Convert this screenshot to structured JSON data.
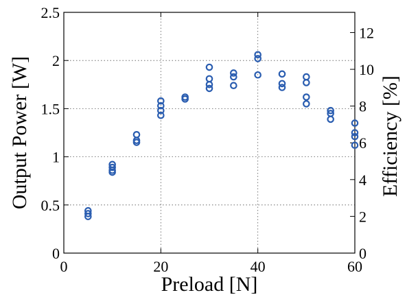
{
  "chart_data": {
    "type": "scatter",
    "title": "",
    "xlabel": "Preload [N]",
    "ylabel": "Output Power [W]",
    "y2label": "Efficiency [%]",
    "xlim": [
      0,
      60
    ],
    "ylim": [
      0,
      2.5
    ],
    "y2lim": [
      0,
      13.1
    ],
    "grid": true,
    "x_ticks": [
      "0",
      "20",
      "40",
      "60"
    ],
    "y_ticks": [
      "0",
      "0.5",
      "1",
      "1.5",
      "2",
      "2.5"
    ],
    "y2_ticks": [
      "0",
      "2",
      "4",
      "6",
      "8",
      "10",
      "12"
    ],
    "marker_color": "#2a5db0",
    "series": [
      {
        "points": [
          {
            "x": 5,
            "y": 0.44
          },
          {
            "x": 5,
            "y": 0.41
          },
          {
            "x": 5,
            "y": 0.38
          },
          {
            "x": 10,
            "y": 0.92
          },
          {
            "x": 10,
            "y": 0.89
          },
          {
            "x": 10,
            "y": 0.86
          },
          {
            "x": 10,
            "y": 0.84
          },
          {
            "x": 15,
            "y": 1.23
          },
          {
            "x": 15,
            "y": 1.17
          },
          {
            "x": 15,
            "y": 1.15
          },
          {
            "x": 20,
            "y": 1.58
          },
          {
            "x": 20,
            "y": 1.53
          },
          {
            "x": 20,
            "y": 1.48
          },
          {
            "x": 20,
            "y": 1.43
          },
          {
            "x": 25,
            "y": 1.62
          },
          {
            "x": 25,
            "y": 1.6
          },
          {
            "x": 30,
            "y": 1.93
          },
          {
            "x": 30,
            "y": 1.81
          },
          {
            "x": 30,
            "y": 1.75
          },
          {
            "x": 30,
            "y": 1.71
          },
          {
            "x": 35,
            "y": 1.87
          },
          {
            "x": 35,
            "y": 1.83
          },
          {
            "x": 35,
            "y": 1.74
          },
          {
            "x": 40,
            "y": 2.06
          },
          {
            "x": 40,
            "y": 2.02
          },
          {
            "x": 40,
            "y": 1.85
          },
          {
            "x": 45,
            "y": 1.86
          },
          {
            "x": 45,
            "y": 1.76
          },
          {
            "x": 45,
            "y": 1.72
          },
          {
            "x": 50,
            "y": 1.83
          },
          {
            "x": 50,
            "y": 1.77
          },
          {
            "x": 50,
            "y": 1.62
          },
          {
            "x": 50,
            "y": 1.55
          },
          {
            "x": 55,
            "y": 1.48
          },
          {
            "x": 55,
            "y": 1.45
          },
          {
            "x": 55,
            "y": 1.39
          },
          {
            "x": 60,
            "y": 1.35
          },
          {
            "x": 60,
            "y": 1.25
          },
          {
            "x": 60,
            "y": 1.21
          },
          {
            "x": 60,
            "y": 1.12
          }
        ]
      }
    ]
  }
}
